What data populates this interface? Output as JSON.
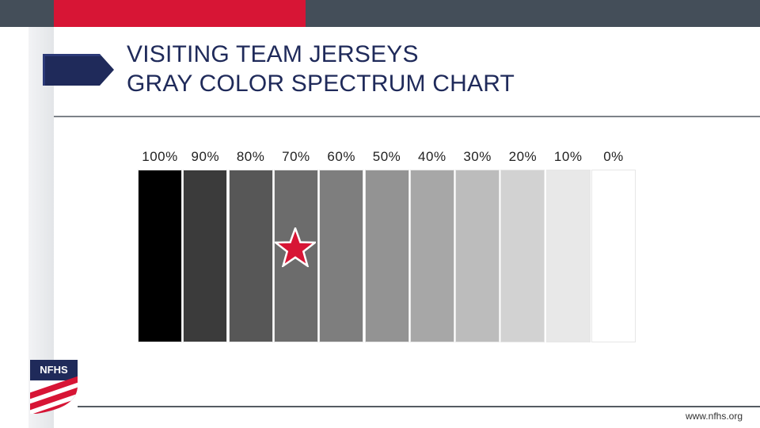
{
  "slide": {
    "title_line1": "VISITING TEAM JERSEYS",
    "title_line2": "GRAY COLOR SPECTRUM CHART",
    "footer_url": "www.nfhs.org",
    "logo_text": "NFHS"
  },
  "spectrum": {
    "labels": [
      "100%",
      "90%",
      "80%",
      "70%",
      "60%",
      "50%",
      "40%",
      "30%",
      "20%",
      "10%",
      "0%"
    ],
    "colors": [
      "#000000",
      "#3b3b3b",
      "#575757",
      "#6c6c6c",
      "#7e7e7e",
      "#939393",
      "#a7a7a7",
      "#bcbcbc",
      "#d2d2d2",
      "#e8e8e8",
      "#ffffff"
    ],
    "marked_level": "70%"
  },
  "colors": {
    "top_bar": "#444e59",
    "accent_red": "#d71535",
    "navy": "#1f2a5a"
  },
  "icons": {
    "title_marker": "flag-arrow-icon",
    "marked_swatch": "star-icon",
    "logo": "nfhs-shield-logo"
  }
}
